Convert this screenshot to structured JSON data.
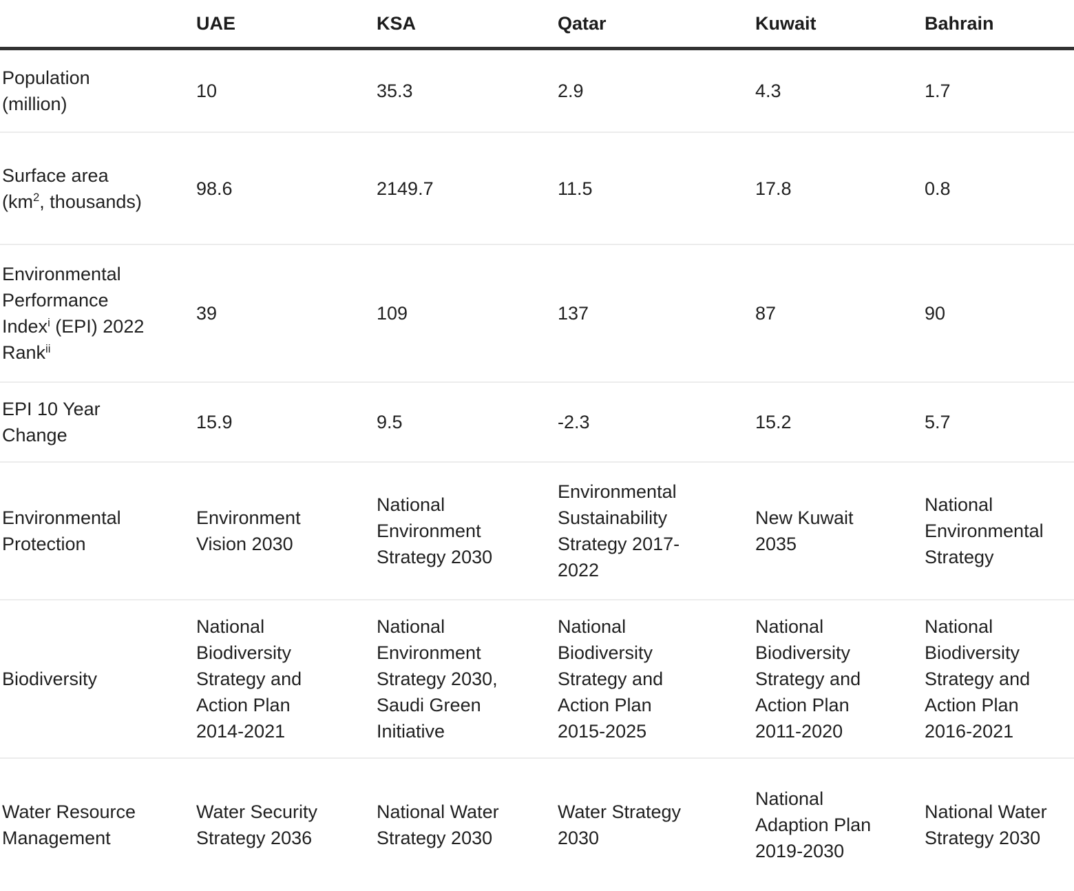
{
  "colors": {
    "text": "#1f1f1f",
    "header_rule": "#323232",
    "row_rule": "#ececec",
    "background": "#ffffff"
  },
  "chart_data": {
    "type": "table",
    "columns": [
      "",
      "UAE",
      "KSA",
      "Qatar",
      "Kuwait",
      "Bahrain"
    ],
    "rows": [
      {
        "label": "Population (million)",
        "label_segments": [
          {
            "t": "Population (million)"
          }
        ],
        "values": [
          "10",
          "35.3",
          "2.9",
          "4.3",
          "1.7"
        ]
      },
      {
        "label": "Surface area (km2, thousands)",
        "label_segments": [
          {
            "t": "Surface area (km"
          },
          {
            "t": "2",
            "sup": true
          },
          {
            "t": ", thousands)"
          }
        ],
        "values": [
          "98.6",
          "2149.7",
          "11.5",
          "17.8",
          "0.8"
        ]
      },
      {
        "label": "Environmental Performance Index (EPI) 2022 Rank",
        "label_segments": [
          {
            "t": "Environmental Performance Index"
          },
          {
            "t": "i",
            "sup": true
          },
          {
            "t": " (EPI) 2022 Rank"
          },
          {
            "t": "ii",
            "sup": true
          }
        ],
        "values": [
          "39",
          "109",
          "137",
          "87",
          "90"
        ]
      },
      {
        "label": "EPI 10 Year Change",
        "label_segments": [
          {
            "t": "EPI 10 Year Change"
          }
        ],
        "values": [
          "15.9",
          "9.5",
          "-2.3",
          "15.2",
          "5.7"
        ]
      },
      {
        "label": "Environmental Protection",
        "label_segments": [
          {
            "t": "Environmental Protection"
          }
        ],
        "values": [
          "Environment Vision 2030",
          "National Environment Strategy 2030",
          "Environmental Sustainability Strategy 2017-2022",
          "New Kuwait 2035",
          "National Environmental Strategy"
        ]
      },
      {
        "label": "Biodiversity",
        "label_segments": [
          {
            "t": "Biodiversity"
          }
        ],
        "values": [
          "National Biodiversity Strategy and Action Plan 2014-2021",
          "National Environment Strategy 2030, Saudi Green Initiative",
          "National Biodiversity Strategy and Action Plan 2015-2025",
          "National Biodiversity Strategy and Action Plan 2011-2020",
          "National Biodiversity Strategy and Action Plan 2016-2021"
        ]
      },
      {
        "label": "Water Resource Management",
        "label_segments": [
          {
            "t": "Water Resource Management"
          }
        ],
        "values": [
          "Water Security Strategy 2036",
          "National Water Strategy 2030",
          "Water Strategy 2030",
          "National Adaption Plan 2019-2030",
          "National Water Strategy 2030"
        ]
      }
    ]
  }
}
